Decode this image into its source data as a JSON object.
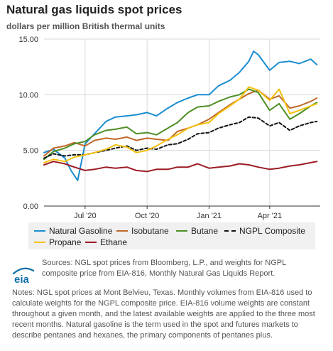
{
  "title": "Natural gas liquids spot prices",
  "subtitle": "dollars per million British thermal units",
  "chart_data": {
    "type": "line",
    "ylim": [
      0,
      15
    ],
    "yticks": [
      "0.00",
      "5.00",
      "10.00",
      "15.00"
    ],
    "xlim": [
      "2020-05-01",
      "2021-06-15"
    ],
    "xticks": [
      {
        "date": "2020-07-01",
        "label": "Jul '20"
      },
      {
        "date": "2020-10-01",
        "label": "Oct '20"
      },
      {
        "date": "2021-01-01",
        "label": "Jan '21"
      },
      {
        "date": "2021-04-01",
        "label": "Apr '21"
      }
    ],
    "grid": true,
    "legend_position": "bottom",
    "series": [
      {
        "name": "Natural Gasoline",
        "color": "#1a8dd0",
        "dash": false,
        "x": [
          "2020-05-01",
          "2020-05-15",
          "2020-06-01",
          "2020-06-10",
          "2020-06-20",
          "2020-07-01",
          "2020-07-15",
          "2020-08-01",
          "2020-08-15",
          "2020-09-01",
          "2020-09-15",
          "2020-10-01",
          "2020-10-15",
          "2020-11-01",
          "2020-11-15",
          "2020-12-01",
          "2020-12-15",
          "2021-01-01",
          "2021-01-15",
          "2021-02-01",
          "2021-02-15",
          "2021-03-01",
          "2021-03-08",
          "2021-03-15",
          "2021-04-01",
          "2021-04-15",
          "2021-05-01",
          "2021-05-15",
          "2021-06-01",
          "2021-06-10"
        ],
        "y": [
          4.8,
          5.1,
          4.3,
          3.2,
          2.3,
          5.6,
          6.5,
          7.6,
          8.0,
          8.1,
          8.2,
          8.4,
          8.1,
          8.8,
          9.3,
          9.7,
          10.0,
          10.0,
          10.8,
          11.3,
          12.0,
          13.0,
          13.9,
          13.6,
          12.2,
          12.9,
          13.0,
          12.8,
          13.2,
          12.7
        ]
      },
      {
        "name": "Isobutane",
        "color": "#c06828",
        "dash": false,
        "x": [
          "2020-05-01",
          "2020-05-15",
          "2020-06-01",
          "2020-06-15",
          "2020-07-01",
          "2020-07-15",
          "2020-08-01",
          "2020-08-15",
          "2020-09-01",
          "2020-09-15",
          "2020-10-01",
          "2020-10-15",
          "2020-11-01",
          "2020-11-15",
          "2020-12-01",
          "2020-12-15",
          "2021-01-01",
          "2021-01-15",
          "2021-02-01",
          "2021-02-15",
          "2021-03-01",
          "2021-03-15",
          "2021-04-01",
          "2021-04-15",
          "2021-05-01",
          "2021-05-15",
          "2021-06-01",
          "2021-06-10"
        ],
        "y": [
          4.5,
          5.2,
          5.4,
          5.7,
          5.4,
          5.9,
          6.1,
          6.0,
          6.2,
          5.9,
          6.1,
          6.0,
          5.9,
          6.7,
          7.0,
          7.3,
          7.8,
          8.4,
          9.1,
          9.6,
          10.1,
          10.4,
          9.6,
          9.9,
          8.8,
          9.0,
          9.4,
          9.7
        ]
      },
      {
        "name": "Butane",
        "color": "#4d8f25",
        "dash": false,
        "x": [
          "2020-05-01",
          "2020-05-15",
          "2020-06-01",
          "2020-06-15",
          "2020-07-01",
          "2020-07-15",
          "2020-08-01",
          "2020-08-15",
          "2020-09-01",
          "2020-09-15",
          "2020-10-01",
          "2020-10-15",
          "2020-11-01",
          "2020-11-15",
          "2020-12-01",
          "2020-12-15",
          "2021-01-01",
          "2021-01-15",
          "2021-02-01",
          "2021-02-15",
          "2021-03-01",
          "2021-03-15",
          "2021-04-01",
          "2021-04-15",
          "2021-05-01",
          "2021-05-15",
          "2021-06-01",
          "2021-06-10"
        ],
        "y": [
          4.2,
          4.9,
          5.2,
          5.6,
          5.8,
          6.4,
          6.8,
          6.9,
          7.1,
          6.5,
          6.6,
          6.4,
          7.0,
          7.5,
          8.4,
          8.9,
          9.0,
          9.4,
          9.8,
          10.0,
          10.5,
          10.2,
          8.6,
          9.2,
          7.8,
          8.3,
          9.0,
          9.3
        ]
      },
      {
        "name": "NGPL Composite",
        "color": "#111111",
        "dash": true,
        "x": [
          "2020-05-01",
          "2020-05-15",
          "2020-06-01",
          "2020-06-15",
          "2020-07-01",
          "2020-07-15",
          "2020-08-01",
          "2020-08-15",
          "2020-09-01",
          "2020-09-15",
          "2020-10-01",
          "2020-10-15",
          "2020-11-01",
          "2020-11-15",
          "2020-12-01",
          "2020-12-15",
          "2021-01-01",
          "2021-01-15",
          "2021-02-01",
          "2021-02-15",
          "2021-03-01",
          "2021-03-15",
          "2021-04-01",
          "2021-04-15",
          "2021-05-01",
          "2021-05-15",
          "2021-06-01",
          "2021-06-10"
        ],
        "y": [
          4.3,
          4.7,
          4.5,
          4.6,
          4.6,
          4.8,
          5.0,
          5.2,
          5.4,
          5.0,
          5.2,
          5.1,
          5.5,
          5.6,
          6.0,
          6.5,
          6.6,
          7.0,
          7.3,
          7.5,
          8.0,
          7.9,
          7.2,
          7.5,
          6.8,
          7.2,
          7.5,
          7.6
        ]
      },
      {
        "name": "Propane",
        "color": "#f4c20d",
        "dash": false,
        "x": [
          "2020-05-01",
          "2020-05-15",
          "2020-06-01",
          "2020-06-15",
          "2020-07-01",
          "2020-07-15",
          "2020-08-01",
          "2020-08-15",
          "2020-09-01",
          "2020-09-15",
          "2020-10-01",
          "2020-10-15",
          "2020-11-01",
          "2020-11-15",
          "2020-12-01",
          "2020-12-15",
          "2021-01-01",
          "2021-01-15",
          "2021-02-01",
          "2021-02-15",
          "2021-03-01",
          "2021-03-15",
          "2021-04-01",
          "2021-04-15",
          "2021-05-01",
          "2021-05-15",
          "2021-06-01",
          "2021-06-10"
        ],
        "y": [
          3.9,
          4.2,
          4.0,
          4.4,
          4.6,
          4.8,
          5.1,
          5.5,
          5.3,
          4.8,
          5.0,
          5.4,
          6.0,
          6.4,
          7.0,
          7.3,
          7.5,
          8.3,
          9.0,
          9.6,
          10.7,
          10.4,
          9.5,
          10.5,
          8.3,
          8.6,
          9.0,
          9.2
        ]
      },
      {
        "name": "Ethane",
        "color": "#9c1b24",
        "dash": false,
        "x": [
          "2020-05-01",
          "2020-05-15",
          "2020-06-01",
          "2020-06-15",
          "2020-07-01",
          "2020-07-15",
          "2020-08-01",
          "2020-08-15",
          "2020-09-01",
          "2020-09-15",
          "2020-10-01",
          "2020-10-15",
          "2020-11-01",
          "2020-11-15",
          "2020-12-01",
          "2020-12-15",
          "2021-01-01",
          "2021-01-15",
          "2021-02-01",
          "2021-02-15",
          "2021-03-01",
          "2021-03-15",
          "2021-04-01",
          "2021-04-15",
          "2021-05-01",
          "2021-05-15",
          "2021-06-01",
          "2021-06-10"
        ],
        "y": [
          3.7,
          4.0,
          3.8,
          3.5,
          3.2,
          3.3,
          3.5,
          3.4,
          3.5,
          3.2,
          3.1,
          3.3,
          3.3,
          3.5,
          3.5,
          3.8,
          3.4,
          3.5,
          3.6,
          3.8,
          3.7,
          3.5,
          3.3,
          3.4,
          3.6,
          3.7,
          3.9,
          4.0
        ]
      }
    ]
  },
  "legend": {
    "items": [
      {
        "label": "Natural Gasoline",
        "color": "#1a8dd0",
        "dash": false
      },
      {
        "label": "Isobutane",
        "color": "#c06828",
        "dash": false
      },
      {
        "label": "Butane",
        "color": "#4d8f25",
        "dash": false
      },
      {
        "label": "NGPL Composite",
        "color": "#111111",
        "dash": true
      },
      {
        "label": "Propane",
        "color": "#f4c20d",
        "dash": false
      },
      {
        "label": "Ethane",
        "color": "#9c1b24",
        "dash": false
      }
    ]
  },
  "logo": {
    "text": "eia",
    "icon": "eia-logo-icon",
    "color": "#0f6fa8"
  },
  "sources": "Sources: NGL spot prices from Bloomberg, L.P., and weights for NGPL composite price from EIA-816, Monthly Natural Gas Liquids Report.",
  "notes": "Notes: NGL spot prices at Mont Belvieu, Texas. Monthly volumes from EIA-816 used to calculate weights for the NGPL composite price. EIA-816 volume weights are constant throughout a given month, and the latest available weights are applied to the three most recent months. Natural gasoline is the term used in the spot and futures markets to describe pentanes and hexanes, the primary components of pentanes plus."
}
